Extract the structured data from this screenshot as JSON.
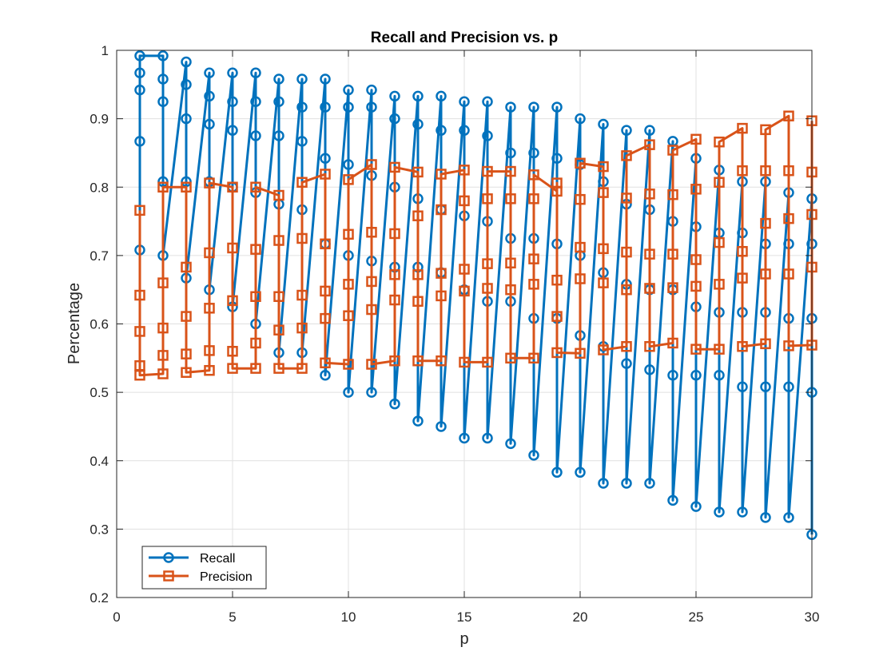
{
  "chart_data": {
    "type": "line",
    "title": "Recall and Precision vs. p",
    "xlabel": "p",
    "ylabel": "Percentage",
    "xlim": [
      0,
      30
    ],
    "ylim": [
      0.2,
      1
    ],
    "xticks": [
      "0",
      "5",
      "10",
      "15",
      "20",
      "25",
      "30"
    ],
    "yticks": [
      "0.2",
      "0.3",
      "0.4",
      "0.5",
      "0.6",
      "0.7",
      "0.8",
      "0.9",
      "1"
    ],
    "grid": true,
    "legend_position": "bottom-left",
    "series": [
      {
        "name": "Recall",
        "color": "#0072BD",
        "marker": "circle",
        "values_per_p": [
          [
            0.708,
            0.867,
            0.942,
            0.967,
            0.992
          ],
          [
            0.992,
            0.958,
            0.925,
            0.808,
            0.7
          ],
          [
            0.983,
            0.95,
            0.9,
            0.808,
            0.667
          ],
          [
            0.967,
            0.933,
            0.892,
            0.808,
            0.65
          ],
          [
            0.967,
            0.925,
            0.883,
            0.8,
            0.625
          ],
          [
            0.967,
            0.925,
            0.875,
            0.792,
            0.6
          ],
          [
            0.958,
            0.925,
            0.875,
            0.775,
            0.558
          ],
          [
            0.958,
            0.917,
            0.867,
            0.767,
            0.558
          ],
          [
            0.958,
            0.917,
            0.842,
            0.717,
            0.525
          ],
          [
            0.942,
            0.917,
            0.833,
            0.7,
            0.5
          ],
          [
            0.942,
            0.917,
            0.817,
            0.692,
            0.5
          ],
          [
            0.933,
            0.9,
            0.8,
            0.683,
            0.483
          ],
          [
            0.933,
            0.892,
            0.783,
            0.683,
            0.458
          ],
          [
            0.933,
            0.883,
            0.767,
            0.675,
            0.45
          ],
          [
            0.925,
            0.883,
            0.758,
            0.65,
            0.433
          ],
          [
            0.925,
            0.875,
            0.75,
            0.633,
            0.433
          ],
          [
            0.917,
            0.85,
            0.725,
            0.633,
            0.425
          ],
          [
            0.917,
            0.85,
            0.725,
            0.608,
            0.408
          ],
          [
            0.917,
            0.842,
            0.717,
            0.608,
            0.383
          ],
          [
            0.9,
            0.833,
            0.7,
            0.583,
            0.383
          ],
          [
            0.892,
            0.808,
            0.675,
            0.567,
            0.367
          ],
          [
            0.883,
            0.775,
            0.658,
            0.542,
            0.367
          ],
          [
            0.883,
            0.767,
            0.65,
            0.533,
            0.367
          ],
          [
            0.867,
            0.75,
            0.65,
            0.525,
            0.342
          ],
          [
            0.842,
            0.742,
            0.625,
            0.525,
            0.333
          ],
          [
            0.825,
            0.733,
            0.617,
            0.525,
            0.325
          ],
          [
            0.808,
            0.733,
            0.617,
            0.508,
            0.325
          ],
          [
            0.808,
            0.717,
            0.617,
            0.508,
            0.317
          ],
          [
            0.792,
            0.717,
            0.608,
            0.508,
            0.317
          ],
          [
            0.783,
            0.717,
            0.608,
            0.5,
            0.292
          ]
        ]
      },
      {
        "name": "Precision",
        "color": "#D95319",
        "marker": "square",
        "values_per_p": [
          [
            0.766,
            0.642,
            0.589,
            0.539,
            0.525
          ],
          [
            0.527,
            0.554,
            0.594,
            0.66,
            0.8
          ],
          [
            0.8,
            0.683,
            0.611,
            0.556,
            0.529
          ],
          [
            0.532,
            0.561,
            0.623,
            0.704,
            0.806
          ],
          [
            0.8,
            0.711,
            0.634,
            0.56,
            0.535
          ],
          [
            0.535,
            0.572,
            0.64,
            0.709,
            0.8
          ],
          [
            0.788,
            0.722,
            0.64,
            0.591,
            0.535
          ],
          [
            0.535,
            0.594,
            0.642,
            0.725,
            0.807
          ],
          [
            0.819,
            0.717,
            0.648,
            0.608,
            0.543
          ],
          [
            0.541,
            0.612,
            0.658,
            0.731,
            0.811
          ],
          [
            0.833,
            0.734,
            0.662,
            0.621,
            0.541
          ],
          [
            0.546,
            0.635,
            0.672,
            0.732,
            0.829
          ],
          [
            0.822,
            0.758,
            0.672,
            0.633,
            0.546
          ],
          [
            0.546,
            0.641,
            0.674,
            0.767,
            0.819
          ],
          [
            0.825,
            0.78,
            0.68,
            0.648,
            0.544
          ],
          [
            0.544,
            0.652,
            0.688,
            0.783,
            0.823
          ],
          [
            0.823,
            0.783,
            0.689,
            0.65,
            0.55
          ],
          [
            0.55,
            0.658,
            0.695,
            0.783,
            0.818
          ],
          [
            0.794,
            0.806,
            0.664,
            0.611,
            0.558
          ],
          [
            0.557,
            0.666,
            0.712,
            0.782,
            0.835
          ],
          [
            0.83,
            0.792,
            0.71,
            0.66,
            0.562
          ],
          [
            0.567,
            0.65,
            0.705,
            0.784,
            0.846
          ],
          [
            0.862,
            0.79,
            0.702,
            0.652,
            0.567
          ],
          [
            0.572,
            0.653,
            0.702,
            0.789,
            0.854
          ],
          [
            0.87,
            0.797,
            0.694,
            0.655,
            0.563
          ],
          [
            0.563,
            0.658,
            0.719,
            0.807,
            0.866
          ],
          [
            0.886,
            0.824,
            0.706,
            0.667,
            0.567
          ],
          [
            0.571,
            0.673,
            0.747,
            0.824,
            0.884
          ],
          [
            0.904,
            0.824,
            0.754,
            0.673,
            0.568
          ],
          [
            0.569,
            0.683,
            0.76,
            0.822,
            0.897
          ]
        ]
      }
    ]
  }
}
